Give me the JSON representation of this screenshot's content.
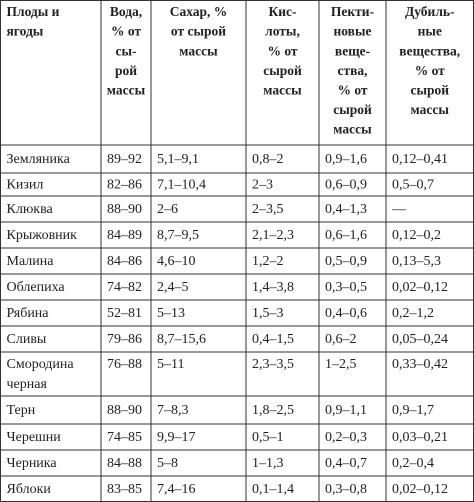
{
  "table": {
    "header": [
      [
        "Плоды и",
        "ягоды"
      ],
      [
        "Вода,",
        "% от",
        "сы-",
        "рой",
        "массы"
      ],
      [
        "Сахар, %",
        "от сырой",
        "массы"
      ],
      [
        "Кис-",
        "лоты,",
        "% от",
        "сырой",
        "массы"
      ],
      [
        "Пекти-",
        "новые",
        "веще-",
        "ства,",
        "% от",
        "сырой",
        "массы"
      ],
      [
        "Дубиль-",
        "ные",
        "вещества,",
        "% от",
        "сырой",
        "массы"
      ]
    ],
    "rows": [
      [
        "Земляника",
        "89–92",
        "5,1–9,1",
        "0,8–2",
        "0,9–1,6",
        "0,12–0,41"
      ],
      [
        "Кизил",
        "82–86",
        "7,1–10,4",
        "2–3",
        "0,6–0,9",
        "0,5–0,7"
      ],
      [
        "Клюква",
        "88–90",
        "2–6",
        "2–3,5",
        "0,4–1,3",
        "—"
      ],
      [
        "Крыжовник",
        "84–89",
        "8,7–9,5",
        "2,1–2,3",
        "0,6–1,6",
        "0,12–0,2"
      ],
      [
        "Малина",
        "84–86",
        "4,6–10",
        "1,2–2",
        "0,5–0,9",
        "0,13–5,3"
      ],
      [
        "Облепиха",
        "74–82",
        "2,4–5",
        "1,4–3,8",
        "0,3–0,5",
        "0,02–0,12"
      ],
      [
        "Рябина",
        "52–81",
        "5–13",
        "1,5–3",
        "0,4–0,6",
        "0,2–1,2"
      ],
      [
        "Сливы",
        "79–86",
        "8,7–15,6",
        "0,4–1,5",
        "0,6–2",
        "0,05–0,24"
      ],
      [
        [
          "Смородина",
          "черная"
        ],
        "76–88",
        "5–11",
        "2,3–3,5",
        "1–2,5",
        "0,33–0,42"
      ],
      [
        "Терн",
        "88–90",
        "7–8,3",
        "1,8–2,5",
        "0,9–1,1",
        "0,9–1,7"
      ],
      [
        "Черешни",
        "74–85",
        "9,9–17",
        "0,5–1",
        "0,2–0,3",
        "0,03–0,21"
      ],
      [
        "Черника",
        "84–88",
        "5–8",
        "1–1,3",
        "0,4–0,7",
        "0,2–0,4"
      ],
      [
        "Яблоки",
        "83–85",
        "7,4–16",
        "0,1–1,4",
        "0,3–0,8",
        "0,02–0,12"
      ]
    ]
  }
}
